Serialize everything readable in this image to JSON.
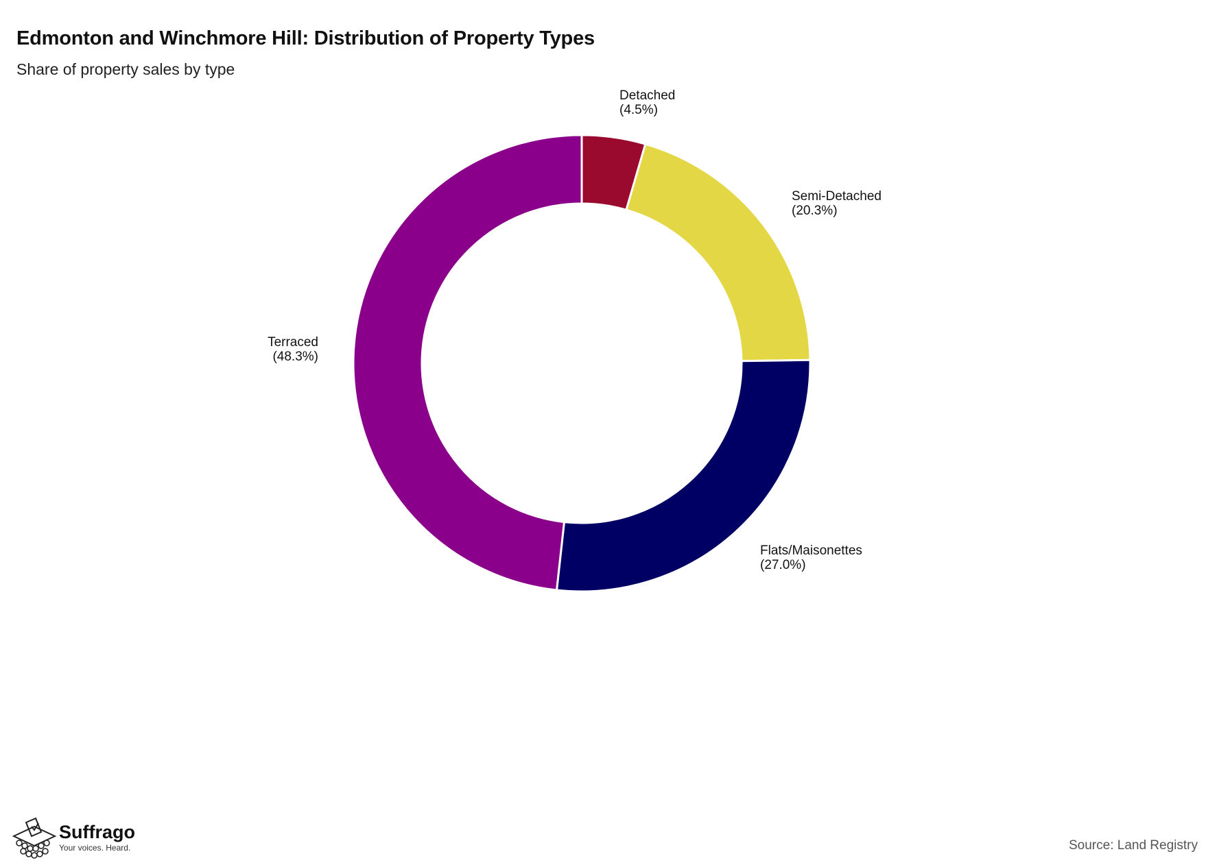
{
  "chart_data": {
    "type": "pie",
    "variant": "donut",
    "title": "Edmonton and Winchmore Hill: Distribution of Property Types",
    "subtitle": "Share of property sales by type",
    "slices": [
      {
        "label": "Detached",
        "value": 4.5,
        "value_label": "(4.5%)",
        "color": "#990a2e"
      },
      {
        "label": "Semi-Detached",
        "value": 20.3,
        "value_label": "(20.3%)",
        "color": "#e3d745"
      },
      {
        "label": "Flats/Maisonettes",
        "value": 27.0,
        "value_label": "(27.0%)",
        "color": "#000064"
      },
      {
        "label": "Terraced",
        "value": 48.3,
        "value_label": "(48.3%)",
        "color": "#8a008a"
      }
    ],
    "start": "12 o'clock, clockwise",
    "source": "Source: Land Registry"
  },
  "branding": {
    "name": "Suffrago",
    "tagline": "Your voices. Heard.",
    "icon": "ballot-box-icon"
  }
}
